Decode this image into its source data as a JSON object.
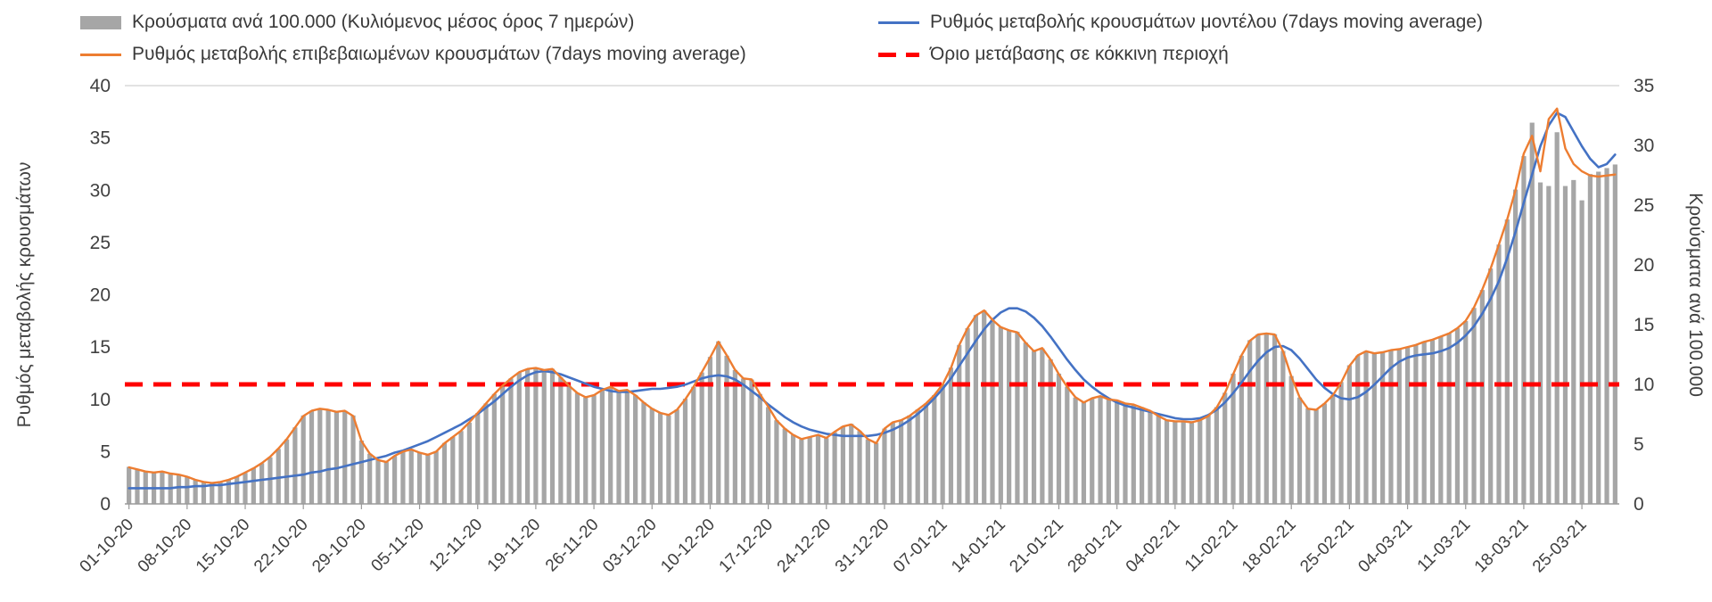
{
  "legend": {
    "position": "top"
  },
  "chart_data": {
    "type": "combo-bar-line",
    "title": "",
    "grid": "off",
    "legend_position": "top",
    "left_axis": {
      "label": "Ρυθμός μεταβολής κρουσμάτων",
      "min": 0,
      "max": 40,
      "step": 5,
      "ticks": [
        0,
        5,
        10,
        15,
        20,
        25,
        30,
        35,
        40
      ]
    },
    "right_axis": {
      "label": "Κρούσματα ανά 100.000",
      "min": 0,
      "max": 35,
      "step": 5,
      "ticks": [
        0,
        5,
        10,
        15,
        20,
        25,
        30,
        35
      ]
    },
    "x_tick_interval_days": 7,
    "x_tick_labels": [
      "01-10-20",
      "08-10-20",
      "15-10-20",
      "22-10-20",
      "29-10-20",
      "05-11-20",
      "12-11-20",
      "19-11-20",
      "26-11-20",
      "03-12-20",
      "10-12-20",
      "17-12-20",
      "24-12-20",
      "31-12-20",
      "07-01-21",
      "14-01-21",
      "21-01-21",
      "28-01-21",
      "04-02-21",
      "11-02-21",
      "18-02-21",
      "25-02-21",
      "04-03-21",
      "11-03-21",
      "18-03-21",
      "25-03-21"
    ],
    "threshold": {
      "label": "Όριο μετάβασης σε κόκκινη περιοχή",
      "axis": "right",
      "value": 10,
      "color": "#ff0000",
      "style": "dashed"
    },
    "series": [
      {
        "id": "cases_per_100k",
        "name": "Κρούσματα ανά 100.000 (Κυλιόμενος μέσος όρος 7 ημερών)",
        "type": "bar",
        "axis": "right",
        "color": "#a6a6a6",
        "values": [
          3.1,
          2.9,
          2.7,
          2.6,
          2.7,
          2.5,
          2.5,
          2.3,
          2.0,
          1.8,
          1.8,
          1.8,
          2.0,
          2.3,
          2.6,
          3.0,
          3.4,
          3.9,
          4.6,
          5.4,
          6.4,
          7.4,
          7.8,
          8.0,
          7.9,
          7.7,
          7.8,
          7.4,
          5.3,
          4.2,
          3.7,
          3.5,
          4.0,
          4.4,
          4.6,
          4.3,
          4.1,
          4.4,
          5.1,
          5.6,
          6.1,
          6.8,
          7.6,
          8.4,
          9.2,
          9.9,
          10.5,
          11.0,
          11.3,
          11.4,
          11.2,
          11.3,
          10.6,
          9.9,
          9.3,
          8.9,
          9.1,
          9.5,
          9.8,
          9.5,
          9.5,
          9.1,
          8.5,
          8.0,
          7.6,
          7.4,
          7.9,
          8.8,
          9.8,
          11.0,
          12.3,
          13.6,
          12.4,
          11.2,
          10.5,
          10.4,
          9.2,
          8.1,
          7.0,
          6.3,
          5.8,
          5.4,
          5.6,
          5.8,
          5.5,
          6.0,
          6.5,
          6.7,
          6.1,
          5.4,
          5.1,
          6.3,
          6.8,
          7.0,
          7.4,
          7.9,
          8.4,
          9.1,
          10.0,
          11.4,
          13.3,
          14.7,
          15.8,
          16.2,
          15.4,
          14.8,
          14.5,
          14.4,
          13.5,
          12.8,
          13.0,
          12.1,
          10.9,
          9.8,
          8.9,
          8.5,
          8.8,
          9.0,
          8.8,
          8.7,
          8.4,
          8.3,
          8.1,
          7.8,
          7.4,
          7.0,
          6.9,
          6.9,
          6.8,
          7.0,
          7.4,
          8.1,
          9.3,
          10.9,
          12.4,
          13.7,
          14.2,
          14.3,
          14.2,
          12.8,
          10.7,
          8.9,
          8.0,
          7.9,
          8.4,
          9.1,
          10.2,
          11.6,
          12.4,
          12.8,
          12.6,
          12.7,
          12.9,
          13.0,
          13.1,
          13.3,
          13.6,
          13.7,
          14.0,
          14.3,
          14.7,
          15.3,
          16.4,
          17.9,
          19.7,
          21.7,
          23.8,
          26.3,
          29.1,
          31.9,
          26.9,
          26.6,
          31.1,
          26.6,
          27.1,
          25.4,
          27.6,
          27.8,
          28.1,
          28.4
        ]
      },
      {
        "id": "confirmed_rate",
        "name": "Ρυθμός μεταβολής επιβεβαιωμένων κρουσμάτων (7days moving average)",
        "type": "line",
        "axis": "left",
        "color": "#ed7d31",
        "values": [
          3.5,
          3.3,
          3.1,
          3.0,
          3.1,
          2.9,
          2.8,
          2.6,
          2.3,
          2.1,
          2.0,
          2.1,
          2.3,
          2.6,
          3.0,
          3.4,
          3.9,
          4.5,
          5.3,
          6.2,
          7.3,
          8.4,
          8.9,
          9.1,
          9.0,
          8.8,
          8.9,
          8.4,
          6.0,
          4.8,
          4.2,
          4.0,
          4.6,
          5.0,
          5.2,
          4.9,
          4.7,
          5.0,
          5.8,
          6.4,
          7.0,
          7.8,
          8.7,
          9.6,
          10.5,
          11.3,
          12.0,
          12.6,
          12.9,
          13.0,
          12.8,
          12.9,
          12.1,
          11.3,
          10.6,
          10.2,
          10.4,
          10.9,
          11.2,
          10.8,
          10.9,
          10.4,
          9.7,
          9.1,
          8.7,
          8.5,
          9.0,
          10.0,
          11.2,
          12.6,
          14.0,
          15.5,
          14.2,
          12.8,
          12.0,
          11.9,
          10.5,
          9.3,
          8.0,
          7.2,
          6.6,
          6.2,
          6.4,
          6.6,
          6.3,
          6.9,
          7.4,
          7.6,
          7.0,
          6.2,
          5.8,
          7.2,
          7.8,
          8.0,
          8.4,
          9.0,
          9.6,
          10.4,
          11.4,
          13.0,
          15.2,
          16.8,
          18.0,
          18.5,
          17.6,
          16.9,
          16.6,
          16.4,
          15.4,
          14.6,
          14.9,
          13.8,
          12.4,
          11.2,
          10.2,
          9.7,
          10.1,
          10.3,
          10.0,
          9.9,
          9.6,
          9.5,
          9.2,
          8.9,
          8.4,
          8.0,
          7.9,
          7.9,
          7.8,
          8.0,
          8.4,
          9.2,
          10.6,
          12.4,
          14.2,
          15.6,
          16.2,
          16.3,
          16.2,
          14.6,
          12.2,
          10.2,
          9.1,
          9.0,
          9.6,
          10.4,
          11.6,
          13.2,
          14.2,
          14.6,
          14.4,
          14.5,
          14.7,
          14.8,
          15.0,
          15.2,
          15.5,
          15.7,
          16.0,
          16.3,
          16.8,
          17.5,
          18.8,
          20.5,
          22.5,
          24.8,
          27.2,
          30.0,
          33.5,
          35.2,
          31.8,
          36.8,
          37.8,
          34.0,
          32.5,
          31.8,
          31.4,
          31.3,
          31.4,
          31.5
        ]
      },
      {
        "id": "model_rate",
        "name": "Ρυθμός μεταβολής κρουσμάτων μοντέλου (7days moving average)",
        "type": "line",
        "axis": "left",
        "color": "#4472c4",
        "values": [
          1.5,
          1.5,
          1.5,
          1.5,
          1.5,
          1.5,
          1.6,
          1.6,
          1.7,
          1.7,
          1.8,
          1.8,
          1.9,
          2.0,
          2.1,
          2.2,
          2.3,
          2.4,
          2.5,
          2.6,
          2.7,
          2.8,
          3.0,
          3.1,
          3.3,
          3.4,
          3.6,
          3.8,
          4.0,
          4.2,
          4.4,
          4.6,
          4.9,
          5.1,
          5.4,
          5.7,
          6.0,
          6.4,
          6.8,
          7.2,
          7.6,
          8.1,
          8.6,
          9.2,
          9.8,
          10.5,
          11.2,
          11.8,
          12.3,
          12.6,
          12.7,
          12.6,
          12.4,
          12.1,
          11.8,
          11.5,
          11.2,
          11.0,
          10.8,
          10.7,
          10.7,
          10.8,
          10.9,
          11.0,
          11.0,
          11.1,
          11.2,
          11.4,
          11.7,
          12.0,
          12.2,
          12.3,
          12.2,
          11.9,
          11.4,
          10.8,
          10.2,
          9.5,
          8.9,
          8.3,
          7.8,
          7.4,
          7.1,
          6.9,
          6.7,
          6.6,
          6.5,
          6.5,
          6.5,
          6.5,
          6.6,
          6.8,
          7.1,
          7.5,
          8.0,
          8.6,
          9.3,
          10.1,
          11.0,
          12.0,
          13.2,
          14.4,
          15.6,
          16.7,
          17.6,
          18.3,
          18.7,
          18.7,
          18.4,
          17.8,
          17.0,
          16.0,
          14.9,
          13.8,
          12.8,
          11.9,
          11.2,
          10.6,
          10.1,
          9.7,
          9.4,
          9.2,
          9.0,
          8.8,
          8.6,
          8.4,
          8.2,
          8.1,
          8.1,
          8.2,
          8.5,
          9.0,
          9.7,
          10.6,
          11.6,
          12.7,
          13.7,
          14.5,
          15.0,
          15.1,
          14.7,
          13.9,
          12.9,
          11.9,
          11.1,
          10.5,
          10.1,
          10.0,
          10.2,
          10.7,
          11.4,
          12.2,
          13.0,
          13.6,
          14.0,
          14.2,
          14.3,
          14.4,
          14.6,
          14.9,
          15.4,
          16.1,
          17.0,
          18.2,
          19.6,
          21.3,
          23.5,
          26.0,
          28.8,
          31.5,
          34.2,
          36.2,
          37.4,
          37.0,
          35.6,
          34.2,
          33.0,
          32.2,
          32.5,
          33.4
        ]
      }
    ]
  }
}
